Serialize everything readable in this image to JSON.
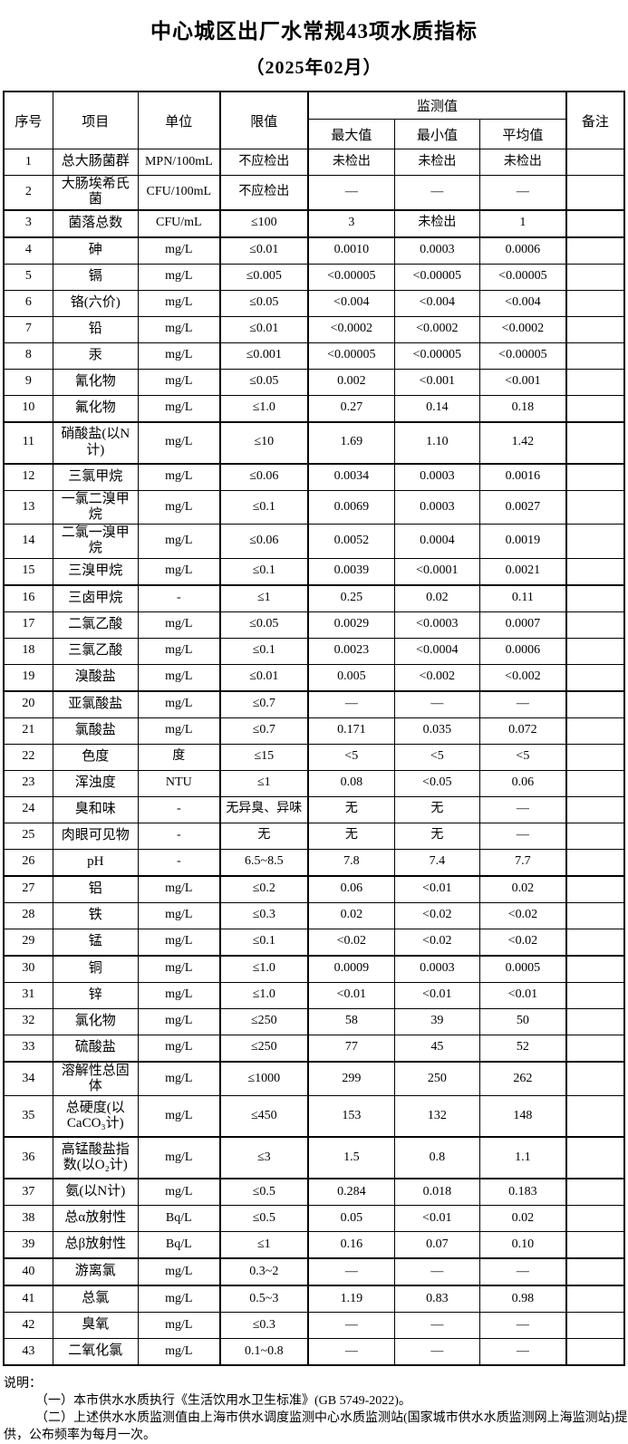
{
  "title": "中心城区出厂水常规43项水质指标",
  "subtitle": "（2025年02月）",
  "table": {
    "headers": {
      "no": "序号",
      "item": "项目",
      "unit": "单位",
      "limit": "限值",
      "monitor": "监测值",
      "max": "最大值",
      "min": "最小值",
      "avg": "平均值",
      "remark": "备注"
    },
    "rows": [
      [
        "1",
        "总大肠菌群",
        "MPN/100mL",
        "不应检出",
        "未检出",
        "未检出",
        "未检出",
        ""
      ],
      [
        "2",
        "大肠埃希氏菌",
        "CFU/100mL",
        "不应检出",
        "—",
        "—",
        "—",
        ""
      ],
      [
        "3",
        "菌落总数",
        "CFU/mL",
        "≤100",
        "3",
        "未检出",
        "1",
        ""
      ],
      [
        "4",
        "砷",
        "mg/L",
        "≤0.01",
        "0.0010",
        "0.0003",
        "0.0006",
        ""
      ],
      [
        "5",
        "镉",
        "mg/L",
        "≤0.005",
        "<0.00005",
        "<0.00005",
        "<0.00005",
        ""
      ],
      [
        "6",
        "铬(六价)",
        "mg/L",
        "≤0.05",
        "<0.004",
        "<0.004",
        "<0.004",
        ""
      ],
      [
        "7",
        "铅",
        "mg/L",
        "≤0.01",
        "<0.0002",
        "<0.0002",
        "<0.0002",
        ""
      ],
      [
        "8",
        "汞",
        "mg/L",
        "≤0.001",
        "<0.00005",
        "<0.00005",
        "<0.00005",
        ""
      ],
      [
        "9",
        "氰化物",
        "mg/L",
        "≤0.05",
        "0.002",
        "<0.001",
        "<0.001",
        ""
      ],
      [
        "10",
        "氟化物",
        "mg/L",
        "≤1.0",
        "0.27",
        "0.14",
        "0.18",
        ""
      ],
      [
        "11",
        "硝酸盐(以N计)",
        "mg/L",
        "≤10",
        "1.69",
        "1.10",
        "1.42",
        ""
      ],
      [
        "12",
        "三氯甲烷",
        "mg/L",
        "≤0.06",
        "0.0034",
        "0.0003",
        "0.0016",
        ""
      ],
      [
        "13",
        "一氯二溴甲烷",
        "mg/L",
        "≤0.1",
        "0.0069",
        "0.0003",
        "0.0027",
        ""
      ],
      [
        "14",
        "二氯一溴甲烷",
        "mg/L",
        "≤0.06",
        "0.0052",
        "0.0004",
        "0.0019",
        ""
      ],
      [
        "15",
        "三溴甲烷",
        "mg/L",
        "≤0.1",
        "0.0039",
        "<0.0001",
        "0.0021",
        ""
      ],
      [
        "16",
        "三卤甲烷",
        "-",
        "≤1",
        "0.25",
        "0.02",
        "0.11",
        ""
      ],
      [
        "17",
        "二氯乙酸",
        "mg/L",
        "≤0.05",
        "0.0029",
        "<0.0003",
        "0.0007",
        ""
      ],
      [
        "18",
        "三氯乙酸",
        "mg/L",
        "≤0.1",
        "0.0023",
        "<0.0004",
        "0.0006",
        ""
      ],
      [
        "19",
        "溴酸盐",
        "mg/L",
        "≤0.01",
        "0.005",
        "<0.002",
        "<0.002",
        ""
      ],
      [
        "20",
        "亚氯酸盐",
        "mg/L",
        "≤0.7",
        "—",
        "—",
        "—",
        ""
      ],
      [
        "21",
        "氯酸盐",
        "mg/L",
        "≤0.7",
        "0.171",
        "0.035",
        "0.072",
        ""
      ],
      [
        "22",
        "色度",
        "度",
        "≤15",
        "<5",
        "<5",
        "<5",
        ""
      ],
      [
        "23",
        "浑浊度",
        "NTU",
        "≤1",
        "0.08",
        "<0.05",
        "0.06",
        ""
      ],
      [
        "24",
        "臭和味",
        "-",
        "无异臭、异味",
        "无",
        "无",
        "—",
        ""
      ],
      [
        "25",
        "肉眼可见物",
        "-",
        "无",
        "无",
        "无",
        "—",
        ""
      ],
      [
        "26",
        "pH",
        "-",
        "6.5~8.5",
        "7.8",
        "7.4",
        "7.7",
        ""
      ],
      [
        "27",
        "铝",
        "mg/L",
        "≤0.2",
        "0.06",
        "<0.01",
        "0.02",
        ""
      ],
      [
        "28",
        "铁",
        "mg/L",
        "≤0.3",
        "0.02",
        "<0.02",
        "<0.02",
        ""
      ],
      [
        "29",
        "锰",
        "mg/L",
        "≤0.1",
        "<0.02",
        "<0.02",
        "<0.02",
        ""
      ],
      [
        "30",
        "铜",
        "mg/L",
        "≤1.0",
        "0.0009",
        "0.0003",
        "0.0005",
        ""
      ],
      [
        "31",
        "锌",
        "mg/L",
        "≤1.0",
        "<0.01",
        "<0.01",
        "<0.01",
        ""
      ],
      [
        "32",
        "氯化物",
        "mg/L",
        "≤250",
        "58",
        "39",
        "50",
        ""
      ],
      [
        "33",
        "硫酸盐",
        "mg/L",
        "≤250",
        "77",
        "45",
        "52",
        ""
      ],
      [
        "34",
        "溶解性总固体",
        "mg/L",
        "≤1000",
        "299",
        "250",
        "262",
        ""
      ],
      [
        "35",
        "总硬度(以CaCO₃计)",
        "mg/L",
        "≤450",
        "153",
        "132",
        "148",
        ""
      ],
      [
        "36",
        "高锰酸盐指数(以O₂计)",
        "mg/L",
        "≤3",
        "1.5",
        "0.8",
        "1.1",
        ""
      ],
      [
        "37",
        "氨(以N计)",
        "mg/L",
        "≤0.5",
        "0.284",
        "0.018",
        "0.183",
        ""
      ],
      [
        "38",
        "总α放射性",
        "Bq/L",
        "≤0.5",
        "0.05",
        "<0.01",
        "0.02",
        ""
      ],
      [
        "39",
        "总β放射性",
        "Bq/L",
        "≤1",
        "0.16",
        "0.07",
        "0.10",
        ""
      ],
      [
        "40",
        "游离氯",
        "mg/L",
        "0.3~2",
        "—",
        "—",
        "—",
        ""
      ],
      [
        "41",
        "总氯",
        "mg/L",
        "0.5~3",
        "1.19",
        "0.83",
        "0.98",
        ""
      ],
      [
        "42",
        "臭氧",
        "mg/L",
        "≤0.3",
        "—",
        "—",
        "—",
        ""
      ],
      [
        "43",
        "二氧化氯",
        "mg/L",
        "0.1~0.8",
        "—",
        "—",
        "—",
        ""
      ]
    ],
    "thick_border_after_rows": [
      2,
      3,
      10,
      11,
      15,
      19,
      26,
      29,
      33,
      35,
      36,
      39,
      40
    ],
    "tall_rows": [
      11,
      35,
      36
    ]
  },
  "notes": {
    "label": "说明：",
    "items": [
      "（一）本市供水水质执行《生活饮用水卫生标准》(GB 5749-2022)。",
      "（二）上述供水水质监测值由上海市供水调度监测中心水质监测站(国家城市供水水质监测网上海监测站)提供，公布频率为每月一次。"
    ]
  }
}
